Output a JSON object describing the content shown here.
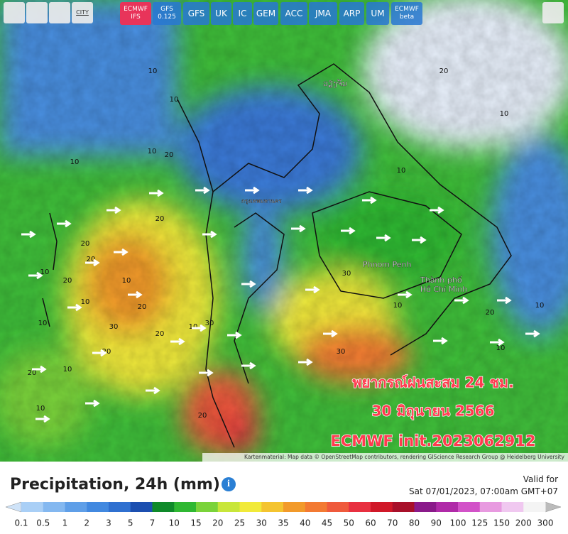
{
  "toolbar": {
    "city_button": "CITY",
    "models": [
      {
        "line1": "ECMWF",
        "line2": "IFS",
        "active": true
      },
      {
        "line1": "GFS",
        "line2": "0.125",
        "active": false
      },
      {
        "line1": "GFS",
        "active": false
      },
      {
        "line1": "UK",
        "active": false
      },
      {
        "line1": "IC",
        "active": false
      },
      {
        "line1": "GEM",
        "active": false
      },
      {
        "line1": "ACC",
        "active": false
      },
      {
        "line1": "JMA",
        "active": false
      },
      {
        "line1": "ARP",
        "active": false
      },
      {
        "line1": "UM",
        "active": false
      },
      {
        "line1": "ECMWF",
        "line2": "beta",
        "active": false
      }
    ]
  },
  "map": {
    "overlay_lines": [
      "พยากรณ์ฝนสะสม 24 ชม.",
      "30 มิถุนายน 2566",
      "ECMWF init.2023062912"
    ],
    "places": [
      "ວຽງຈັນ",
      "กรุงเทพมหานคร",
      "Phnom Penh",
      "Thành phố",
      "Hồ Chí Minh"
    ],
    "contour_labels": [
      "10",
      "10",
      "10",
      "20",
      "10",
      "20",
      "20",
      "20",
      "10",
      "20",
      "10",
      "10",
      "20",
      "10",
      "30",
      "20",
      "10",
      "20",
      "10",
      "20",
      "30",
      "10",
      "20",
      "30",
      "20",
      "10",
      "10",
      "10",
      "30",
      "10",
      "20",
      "10"
    ],
    "attribution": "Kartenmaterial: Map data © OpenStreetMap contributors, rendering GIScience Research Group @ Heidelberg University"
  },
  "footer": {
    "title": "Precipitation, 24h (mm)",
    "info": "i",
    "valid_label": "Valid for",
    "valid_time": "Sat 07/01/2023, 07:00am GMT+07",
    "legend": {
      "labels": [
        "0.1",
        "0.5",
        "1",
        "2",
        "3",
        "5",
        "7",
        "10",
        "15",
        "20",
        "25",
        "30",
        "35",
        "40",
        "45",
        "50",
        "60",
        "70",
        "80",
        "90",
        "100",
        "125",
        "150",
        "200",
        "300"
      ],
      "colors": [
        "#a9cff6",
        "#84b8f0",
        "#5f9fe8",
        "#4289e0",
        "#2f70d0",
        "#1c4fb0",
        "#0f8a2a",
        "#2fb832",
        "#7ad33a",
        "#c8e63a",
        "#f1ea3a",
        "#f4c430",
        "#f29a2a",
        "#f37a32",
        "#ef5a3c",
        "#e83040",
        "#d01828",
        "#a8102a",
        "#8a1a8a",
        "#b02aa8",
        "#d252c8",
        "#e89ae0",
        "#f0c8f0",
        "#f4f4f4"
      ],
      "low_color": "#cfe3f8",
      "high_color": "#bbbbbb"
    }
  }
}
